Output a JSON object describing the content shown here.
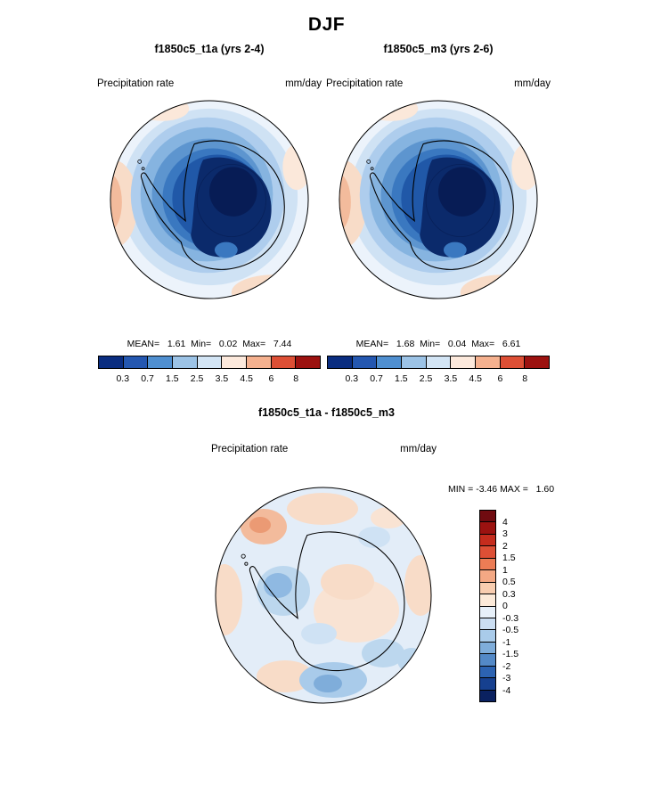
{
  "season_title": "DJF",
  "panels": [
    {
      "title": "f1850c5_t1a (yrs 2-4)",
      "field_label": "Precipitation rate",
      "units_label": "mm/day",
      "stats_line": "MEAN=   1.61  Min=   0.02  Max=   7.44"
    },
    {
      "title": "f1850c5_m3 (yrs 2-6)",
      "field_label": "Precipitation rate",
      "units_label": "mm/day",
      "stats_line": "MEAN=   1.68  Min=   0.04  Max=   6.61"
    }
  ],
  "diff_panel": {
    "title": "f1850c5_t1a - f1850c5_m3",
    "field_label": "Precipitation rate",
    "units_label": "mm/day",
    "minmax_line": "MIN = -3.46 MAX =   1.60"
  },
  "precip_colorbar": {
    "ticks": [
      "0.3",
      "0.7",
      "1.5",
      "2.5",
      "3.5",
      "4.5",
      "6",
      "8"
    ],
    "colors": [
      "#0a2d80",
      "#2457b0",
      "#4f8fd0",
      "#9cc3e6",
      "#d3e5f5",
      "#fce9dc",
      "#f5b18f",
      "#dd4f35",
      "#9c1210"
    ]
  },
  "diff_colorbar": {
    "ticks": [
      "4",
      "3",
      "2",
      "1.5",
      "1",
      "0.5",
      "0.3",
      "0",
      "-0.3",
      "-0.5",
      "-1",
      "-1.5",
      "-2",
      "-3",
      "-4"
    ],
    "colors": [
      "#700b10",
      "#9c1210",
      "#c52c1d",
      "#dd4f35",
      "#ec7c55",
      "#f3a884",
      "#f8cdb0",
      "#fcead9",
      "#e7f0f9",
      "#cbdef2",
      "#a9cbea",
      "#7fadda",
      "#5389c7",
      "#2c63b2",
      "#16408f",
      "#0a2160"
    ]
  },
  "chart_data": [
    {
      "type": "heatmap",
      "subtype": "south-polar-stereographic contour map",
      "title": "f1850c5_t1a (yrs 2-4)",
      "season": "DJF",
      "variable": "Precipitation rate",
      "units": "mm/day",
      "region": "Antarctica and Southern Ocean",
      "contour_levels": [
        0.3,
        0.7,
        1.5,
        2.5,
        3.5,
        4.5,
        6,
        8
      ],
      "stats": {
        "mean": 1.61,
        "min": 0.02,
        "max": 7.44
      },
      "legend_position": "horizontal colorbar below map",
      "description": "Lowest values (dark blue, < 0.3 mm/day) over Antarctic interior; coastal Antarctica 0.3-1.5 mm/day (blues); surrounding ocean 1.5-3.5 mm/day (pale blue to near-white); small warm-colored patches (2.5-4.5 mm/day) near the map rim at left and lower right."
    },
    {
      "type": "heatmap",
      "subtype": "south-polar-stereographic contour map",
      "title": "f1850c5_m3 (yrs 2-6)",
      "season": "DJF",
      "variable": "Precipitation rate",
      "units": "mm/day",
      "region": "Antarctica and Southern Ocean",
      "contour_levels": [
        0.3,
        0.7,
        1.5,
        2.5,
        3.5,
        4.5,
        6,
        8
      ],
      "stats": {
        "mean": 1.68,
        "min": 0.04,
        "max": 6.61
      },
      "legend_position": "horizontal colorbar below map",
      "description": "Pattern nearly identical to f1850c5_t1a: dark-blue minimum over Antarctic plateau, lighter blues over ocean, faint warm patches near rim."
    },
    {
      "type": "heatmap",
      "subtype": "south-polar-stereographic difference map",
      "title": "f1850c5_t1a - f1850c5_m3",
      "season": "DJF",
      "variable": "Precipitation rate",
      "units": "mm/day",
      "region": "Antarctica and Southern Ocean",
      "contour_levels": [
        -4,
        -3,
        -2,
        -1.5,
        -1,
        -0.5,
        -0.3,
        0,
        0.3,
        0.5,
        1,
        1.5,
        2,
        3,
        4
      ],
      "stats": {
        "min": -3.46,
        "max": 1.6
      },
      "legend_position": "vertical colorbar at right",
      "description": "Mostly near-zero differences (pale blue / pale orange, within +/-0.5 mm/day); scattered weak positive (orange) patches near rim and over east Antarctica, weak negative (blue) patches near the peninsula, bottom and right of the disk."
    }
  ]
}
